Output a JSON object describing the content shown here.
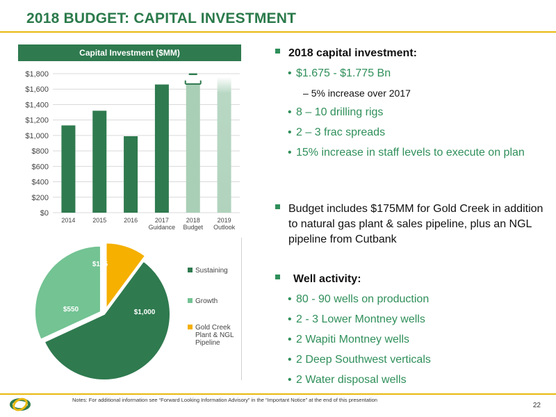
{
  "slide": {
    "title": "2018 BUDGET:  CAPITAL INVESTMENT",
    "page_number": "22",
    "footnote": "Notes: For additional information see “Forward Looking Information Advisory” in the “Important Notice” at the end of this presentation"
  },
  "colors": {
    "brand_green": "#2f7a4f",
    "light_green": "#73c393",
    "accent_gold": "#e8b80e",
    "bullet_green": "#2f8f5a"
  },
  "chart_header": "Capital Investment ($MM)",
  "chart_data": [
    {
      "type": "bar",
      "title": "Capital Investment ($MM)",
      "categories": [
        [
          "2014"
        ],
        [
          "2015"
        ],
        [
          "2016"
        ],
        [
          "2017",
          "Guidance"
        ],
        [
          "2018",
          "Budget"
        ],
        [
          "2019",
          "Outlook"
        ]
      ],
      "values": [
        1130,
        1320,
        990,
        1660,
        1675,
        1650
      ],
      "range_2018": [
        1675,
        1775
      ],
      "y_ticks": [
        "$0",
        "$200",
        "$400",
        "$600",
        "$800",
        "$1,000",
        "$1,200",
        "$1,400",
        "$1,600",
        "$1,800"
      ],
      "ylim": [
        0,
        1800
      ],
      "grid": true
    },
    {
      "type": "pie",
      "slices": [
        {
          "name": "Sustaining",
          "value": 1000,
          "label": "$1,000",
          "color": "#2f7a4f"
        },
        {
          "name": "Growth",
          "value": 550,
          "label": "$550",
          "color": "#73c393"
        },
        {
          "name": "Gold Creek Plant & NGL Pipeline",
          "value": 175,
          "label": "$175",
          "color": "#f5b000"
        }
      ],
      "legend": [
        "Sustaining",
        "Growth",
        "Gold Creek Plant & NGL Pipeline"
      ],
      "legend_placement": "right"
    }
  ],
  "bullets": {
    "capital_heading": "2018 capital investment:",
    "capital_range": "$1.675 - $1.775 Bn",
    "capital_increase": "5% increase over 2017",
    "drilling_rigs": "8 – 10 drilling rigs",
    "frac_spreads": "2 – 3 frac spreads",
    "staff_levels": "15% increase in staff levels to execute on plan",
    "gold_creek": "Budget includes $175MM for Gold Creek in addition to natural gas plant & sales pipeline, plus an NGL pipeline from Cutbank",
    "well_heading": "Well activity:",
    "wells_production": "80 - 90 wells on production",
    "lower_montney": "2 - 3 Lower Montney wells",
    "wapiti": "2 Wapiti Montney wells",
    "deep_southwest": "2 Deep Southwest verticals",
    "water_disposal": "2 Water disposal wells"
  }
}
